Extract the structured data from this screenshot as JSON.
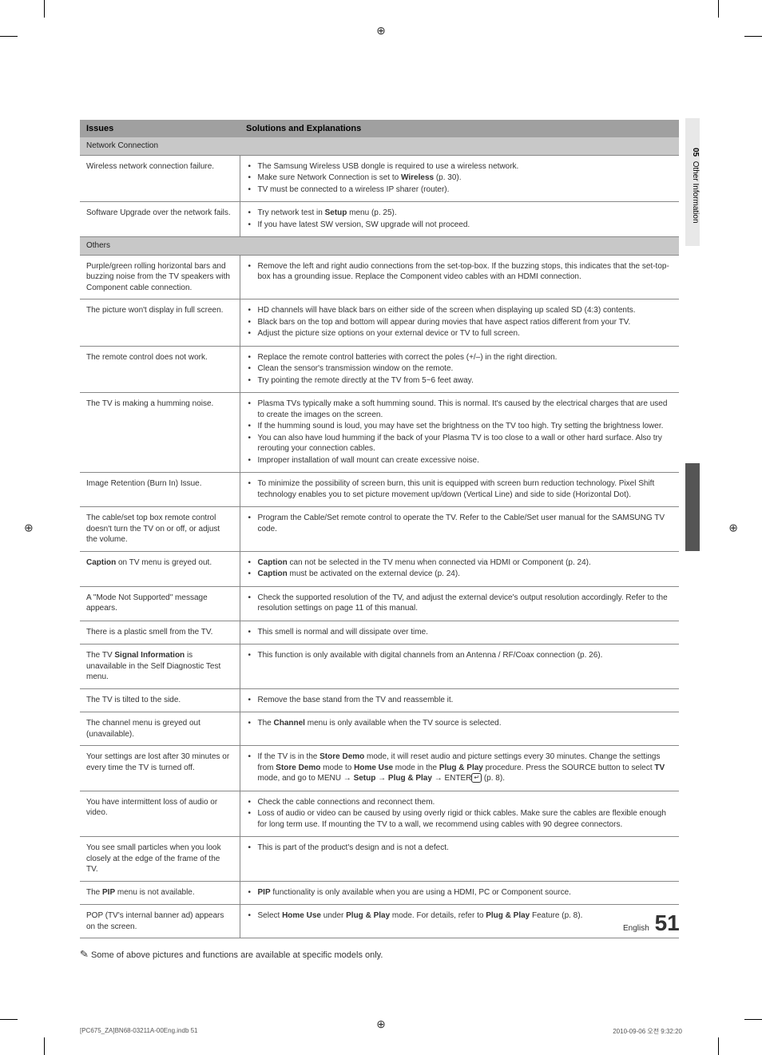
{
  "registration_glyph": "⊕",
  "table": {
    "headers": {
      "issues": "Issues",
      "solutions": "Solutions and Explanations"
    },
    "sections": [
      {
        "title": "Network Connection",
        "rows": [
          {
            "issue": "Wireless network connection failure.",
            "sol_html": "<ul><li>The Samsung Wireless USB dongle is required to use a wireless network.</li><li>Make sure Network Connection is set to <b>Wireless</b> (p. 30).</li><li>TV must be connected to a wireless IP sharer (router).</li></ul>"
          },
          {
            "issue": "Software Upgrade over the network fails.",
            "sol_html": "<ul><li>Try network test in <b>Setup</b> menu (p. 25).</li><li>If you have latest SW version, SW upgrade will not proceed.</li></ul>"
          }
        ]
      },
      {
        "title": "Others",
        "rows": [
          {
            "issue": "Purple/green rolling horizontal bars and buzzing noise from the TV speakers with Component cable connection.",
            "sol_html": "<ul><li>Remove the left and right audio connections from the set-top-box. If the buzzing stops, this indicates that the set-top-box has a grounding issue. Replace the Component video cables with an HDMI connection.</li></ul>"
          },
          {
            "issue": "The picture won't display in full screen.",
            "sol_html": "<ul><li>HD channels will have black bars on either side of the screen when displaying up scaled SD (4:3) contents.</li><li>Black bars on the top and bottom will appear during movies that have aspect ratios different from your TV.</li><li>Adjust the picture size options on your external device or TV to full screen.</li></ul>"
          },
          {
            "issue": "The remote control does not work.",
            "sol_html": "<ul><li>Replace the remote control batteries with correct the poles (+/–) in the right direction.</li><li>Clean the sensor's transmission window on the remote.</li><li>Try pointing the remote directly at the TV from 5~6 feet away.</li></ul>"
          },
          {
            "issue": "The TV is making a humming noise.",
            "sol_html": "<ul><li>Plasma TVs typically make a soft humming sound. This is normal. It's caused by the electrical charges that are used to create the images on the screen.</li><li>If the humming sound is loud, you may have set the brightness on the TV too high. Try setting the brightness lower.</li><li>You can also have loud humming if the back of your Plasma TV is too close to a wall or other hard surface. Also try rerouting your connection cables.</li><li>Improper installation of wall mount can create excessive noise.</li></ul>"
          },
          {
            "issue": "Image Retention (Burn In) Issue.",
            "sol_html": "<ul><li>To minimize the possibility of screen burn, this unit is equipped with screen burn reduction technology. Pixel Shift technology enables you to set picture movement up/down (Vertical Line) and side to side (Horizontal Dot).</li></ul>"
          },
          {
            "issue": "The cable/set top box remote control doesn't turn the TV on or off, or adjust the volume.",
            "sol_html": "<ul><li>Program the Cable/Set remote control to operate the TV. Refer to the Cable/Set user manual for the SAMSUNG TV code.</li></ul>"
          },
          {
            "issue_html": "<b>Caption</b> on TV menu is greyed out.",
            "sol_html": "<ul><li><b>Caption</b> can not be selected in the TV menu when connected via HDMI or Component (p. 24).</li><li><b>Caption</b> must be activated on the external device (p. 24).</li></ul>"
          },
          {
            "issue": "A \"Mode Not Supported\" message appears.",
            "sol_html": "<ul><li>Check the supported resolution of the TV, and adjust the external device's output resolution accordingly. Refer to the resolution settings on page 11 of this manual.</li></ul>"
          },
          {
            "issue": "There is a plastic smell from the TV.",
            "sol_html": "<ul><li>This smell is normal and will dissipate over time.</li></ul>"
          },
          {
            "issue_html": "The TV <b>Signal Information</b> is unavailable in the Self Diagnostic Test menu.",
            "sol_html": "<ul><li>This function is only available with digital channels from an Antenna / RF/Coax connection (p. 26).</li></ul>"
          },
          {
            "issue": "The TV is tilted to the side.",
            "sol_html": "<ul><li>Remove the base stand from the TV and reassemble it.</li></ul>"
          },
          {
            "issue": "The channel menu is greyed out (unavailable).",
            "sol_html": "<ul><li>The <b>Channel</b> menu is only available when the TV source is selected.</li></ul>"
          },
          {
            "issue": "Your settings are lost after 30 minutes or every time the TV is turned off.",
            "sol_html": "<ul><li>If the TV is in the <b>Store Demo</b> mode, it will reset audio and picture settings every 30 minutes. Change the settings from <b>Store Demo</b> mode to <b>Home Use</b> mode in the <b>Plug & Play</b> procedure. Press the SOURCE button to select <b>TV</b> mode, and go to MENU → <b>Setup</b> → <b>Plug & Play</b> → ENTER<span class='enter-icon'>↵</span> (p. 8).</li></ul>"
          },
          {
            "issue": "You have intermittent loss of audio or video.",
            "sol_html": "<ul><li>Check the cable connections and reconnect them.</li><li>Loss of audio or video can be caused by using overly rigid or thick cables. Make sure the cables are flexible enough for long term use. If mounting the TV to a wall, we recommend using cables with 90 degree connectors.</li></ul>"
          },
          {
            "issue": "You see small particles when you look closely at the edge of the frame of the TV.",
            "sol_html": "<ul><li>This is part of the product's design and is not a defect.</li></ul>"
          },
          {
            "issue_html": "The <b>PIP</b> menu is not available.",
            "sol_html": "<ul><li><b>PIP</b> functionality is only available when you are using a HDMI, PC or Component source.</li></ul>"
          },
          {
            "issue": "POP (TV's internal banner ad) appears on the screen.",
            "sol_html": "<ul><li>Select <b>Home Use</b> under <b>Plug & Play</b> mode. For details, refer to <b>Plug & Play</b> Feature (p. 8).</li></ul>"
          }
        ]
      }
    ]
  },
  "note_icon": "✎",
  "note_text": "Some of above pictures and functions are available at specific models only.",
  "side_tab": {
    "num": "05",
    "label": "Other Information"
  },
  "page": {
    "lang": "English",
    "num": "51"
  },
  "footer": {
    "left": "[PC675_ZA]BN68-03211A-00Eng.indb   51",
    "right": "2010-09-06   오전 9:32:20"
  }
}
